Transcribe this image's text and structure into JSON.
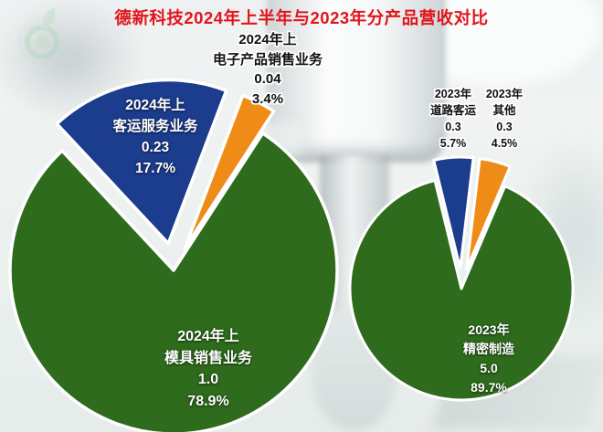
{
  "page": {
    "title": "德新科技2024年上半年与2023年分产品营收对比",
    "title_color": "#e2141b",
    "logo_icon": "green-leaf-ring-logo"
  },
  "chart_data": [
    {
      "type": "pie",
      "title": "2024年上",
      "legend_position": "none",
      "slice_border_color": "#ffffff",
      "slices": [
        {
          "category": "模具销售业务",
          "value": 1.0,
          "percent": "78.9%",
          "color": "#2e6b1c",
          "exploded": false,
          "label_lines": [
            "2024年上",
            "模具销售业务",
            "1.0",
            "78.9%"
          ]
        },
        {
          "category": "客运服务业务",
          "value": 0.23,
          "percent": "17.7%",
          "color": "#1c3c8e",
          "exploded": true,
          "label_lines": [
            "2024年上",
            "客运服务业务",
            "0.23",
            "17.7%"
          ]
        },
        {
          "category": "电子产品销售业务",
          "value": 0.04,
          "percent": "3.4%",
          "color": "#ef8c18",
          "exploded": true,
          "label_lines": [
            "2024年上",
            "电子产品销售业务",
            "0.04",
            "3.4%"
          ]
        }
      ]
    },
    {
      "type": "pie",
      "title": "2023年",
      "legend_position": "none",
      "slice_border_color": "#ffffff",
      "slices": [
        {
          "category": "精密制造",
          "value": 5.0,
          "percent": "89.7%",
          "color": "#2e6b1c",
          "exploded": false,
          "label_lines": [
            "2023年",
            "精密制造",
            "5.0",
            "89.7%"
          ]
        },
        {
          "category": "道路客运",
          "value": 0.3,
          "percent": "5.7%",
          "color": "#1c3c8e",
          "exploded": true,
          "label_lines": [
            "2023年",
            "道路客运",
            "0.3",
            "5.7%"
          ]
        },
        {
          "category": "其他",
          "value": 0.3,
          "percent": "4.5%",
          "color": "#ef8c18",
          "exploded": true,
          "label_lines": [
            "2023年",
            "其他",
            "0.3",
            "4.5%"
          ]
        }
      ]
    }
  ]
}
